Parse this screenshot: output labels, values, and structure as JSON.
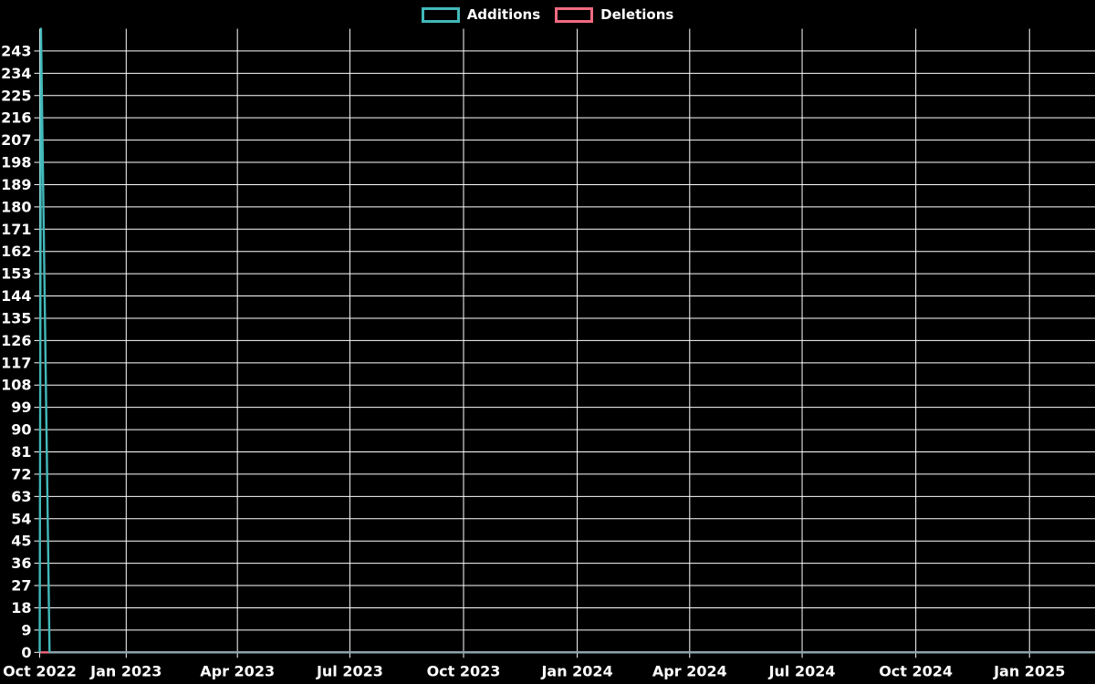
{
  "page": {
    "background": "#000000",
    "text_color": "#ffffff",
    "grid_color": "#ffffff"
  },
  "legend": {
    "items": [
      {
        "label": "Additions",
        "color": "#42b8ba"
      },
      {
        "label": "Deletions",
        "color": "#f16a80"
      }
    ]
  },
  "chart_data": {
    "type": "line",
    "title": "",
    "xlabel": "",
    "ylabel": "",
    "grid": true,
    "legend_position": "top-center",
    "overlap_color": "#8ca7b1",
    "x_axis": {
      "range": [
        "2022-10-23",
        "2025-02-23"
      ],
      "ticks": [
        {
          "label": "Oct 2022",
          "date": "2022-10-23"
        },
        {
          "label": "Jan 2023",
          "date": "2023-01-01"
        },
        {
          "label": "Apr 2023",
          "date": "2023-04-01"
        },
        {
          "label": "Jul 2023",
          "date": "2023-07-01"
        },
        {
          "label": "Oct 2023",
          "date": "2023-10-01"
        },
        {
          "label": "Jan 2024",
          "date": "2024-01-01"
        },
        {
          "label": "Apr 2024",
          "date": "2024-04-01"
        },
        {
          "label": "Jul 2024",
          "date": "2024-07-01"
        },
        {
          "label": "Oct 2024",
          "date": "2024-10-01"
        },
        {
          "label": "Jan 2025",
          "date": "2025-01-01"
        }
      ]
    },
    "y_axis": {
      "lim": [
        0,
        252
      ],
      "tick_step": 9,
      "ticks": [
        0,
        9,
        18,
        27,
        36,
        45,
        54,
        63,
        72,
        81,
        90,
        99,
        108,
        117,
        126,
        135,
        144,
        153,
        162,
        171,
        180,
        189,
        198,
        207,
        216,
        225,
        234,
        243
      ]
    },
    "series": [
      {
        "name": "Additions",
        "color": "#42b8ba",
        "points": [
          [
            "2022-10-23",
            0
          ],
          [
            "2022-10-24",
            252
          ],
          [
            "2022-10-31",
            0
          ],
          [
            "2025-02-23",
            0
          ]
        ]
      },
      {
        "name": "Deletions",
        "color": "#f16a80",
        "points": [
          [
            "2022-10-23",
            0
          ],
          [
            "2025-02-23",
            0
          ]
        ]
      }
    ]
  }
}
